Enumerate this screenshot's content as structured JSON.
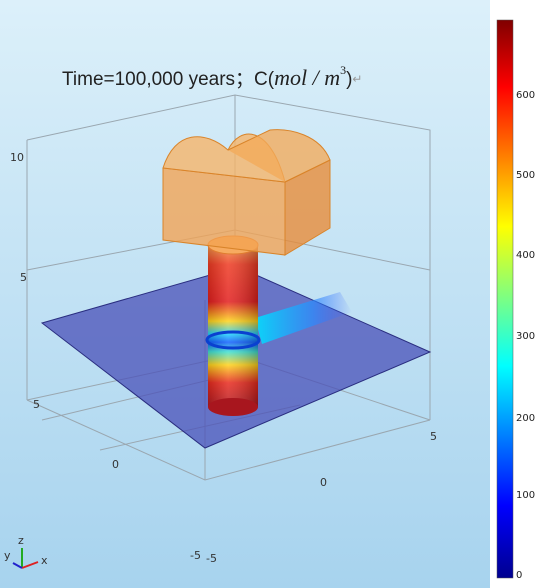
{
  "plot": {
    "title": {
      "prefix": "Time=100,000 years；C(",
      "unit": "mol / m",
      "exponent": "3",
      "suffix": ")",
      "mark": "↵"
    },
    "z_ticks": [
      "10",
      "5"
    ],
    "y_ticks": [
      "5",
      "0",
      "-5"
    ],
    "x_ticks": [
      "-5",
      "0",
      "5"
    ],
    "triad": {
      "x": "x",
      "y": "y",
      "z": "z"
    },
    "colorbar_ticks": [
      "600",
      "500",
      "400",
      "300",
      "200",
      "100",
      "0"
    ]
  }
}
